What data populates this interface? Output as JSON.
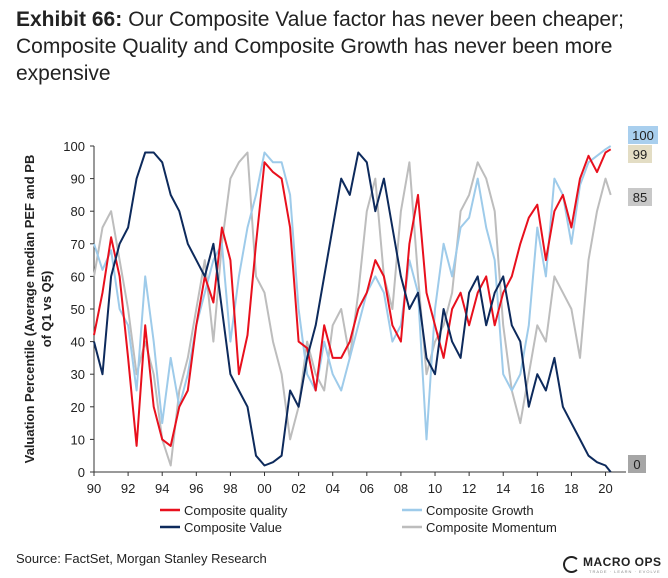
{
  "exhibit_label": "Exhibit 66:",
  "title_text": "Our Composite Value factor has never been cheaper; Composite Quality and Composite Growth has never been more expensive",
  "source": "Source: FactSet, Morgan Stanley Research",
  "logo": {
    "name": "MACRO OPS",
    "tagline": "TRADE · LEARN · EVOLVE"
  },
  "chart_data": {
    "type": "line",
    "ylabel_line1": "Valuation Percentile (Average median PEF and PB",
    "ylabel_line2": "of Q1 vs Q5)",
    "xlim": [
      1990,
      2021.2
    ],
    "ylim": [
      0,
      100
    ],
    "yticks": [
      0,
      10,
      20,
      30,
      40,
      50,
      60,
      70,
      80,
      90,
      100
    ],
    "xticks": [
      1990,
      1992,
      1994,
      1996,
      1998,
      2000,
      2002,
      2004,
      2006,
      2008,
      2010,
      2012,
      2014,
      2016,
      2018,
      2020
    ],
    "xtick_labels": [
      "90",
      "92",
      "94",
      "96",
      "98",
      "00",
      "02",
      "04",
      "06",
      "08",
      "10",
      "12",
      "14",
      "16",
      "18",
      "20"
    ],
    "series": [
      {
        "key": "quality",
        "name": "Composite quality",
        "color": "#e8101d",
        "x": [
          1990,
          1990.5,
          1991,
          1991.5,
          1992,
          1992.5,
          1993,
          1993.5,
          1994,
          1994.5,
          1995,
          1995.5,
          1996,
          1996.5,
          1997,
          1997.5,
          1998,
          1998.5,
          1999,
          1999.5,
          2000,
          2000.5,
          2001,
          2001.5,
          2002,
          2002.5,
          2003,
          2003.5,
          2004,
          2004.5,
          2005,
          2005.5,
          2006,
          2006.5,
          2007,
          2007.5,
          2008,
          2008.5,
          2009,
          2009.5,
          2010,
          2010.5,
          2011,
          2011.5,
          2012,
          2012.5,
          2013,
          2013.5,
          2014,
          2014.5,
          2015,
          2015.5,
          2016,
          2016.5,
          2017,
          2017.5,
          2018,
          2018.5,
          2019,
          2019.5,
          2020,
          2020.3
        ],
        "values": [
          42,
          55,
          72,
          60,
          35,
          8,
          45,
          20,
          10,
          8,
          20,
          25,
          45,
          60,
          52,
          75,
          65,
          30,
          42,
          70,
          95,
          92,
          90,
          75,
          40,
          38,
          25,
          45,
          35,
          35,
          40,
          50,
          55,
          65,
          60,
          45,
          40,
          70,
          85,
          55,
          45,
          35,
          50,
          55,
          45,
          55,
          60,
          45,
          55,
          60,
          70,
          78,
          82,
          65,
          80,
          85,
          75,
          90,
          97,
          92,
          98,
          99
        ],
        "last_value": 99
      },
      {
        "key": "growth",
        "name": "Composite Growth",
        "color": "#9ecbea",
        "x": [
          1990,
          1990.5,
          1991,
          1991.5,
          1992,
          1992.5,
          1993,
          1993.5,
          1994,
          1994.5,
          1995,
          1995.5,
          1996,
          1996.5,
          1997,
          1997.5,
          1998,
          1998.5,
          1999,
          1999.5,
          2000,
          2000.5,
          2001,
          2001.5,
          2002,
          2002.5,
          2003,
          2003.5,
          2004,
          2004.5,
          2005,
          2005.5,
          2006,
          2006.5,
          2007,
          2007.5,
          2008,
          2008.5,
          2009,
          2009.5,
          2010,
          2010.5,
          2011,
          2011.5,
          2012,
          2012.5,
          2013,
          2013.5,
          2014,
          2014.5,
          2015,
          2015.5,
          2016,
          2016.5,
          2017,
          2017.5,
          2018,
          2018.5,
          2019,
          2019.5,
          2020,
          2020.3
        ],
        "values": [
          70,
          62,
          68,
          50,
          45,
          25,
          60,
          40,
          15,
          35,
          20,
          30,
          45,
          55,
          65,
          70,
          40,
          60,
          75,
          85,
          98,
          95,
          95,
          85,
          50,
          30,
          25,
          40,
          30,
          25,
          35,
          45,
          55,
          60,
          55,
          40,
          45,
          65,
          55,
          10,
          50,
          70,
          60,
          75,
          78,
          90,
          75,
          65,
          30,
          25,
          30,
          45,
          75,
          60,
          90,
          85,
          70,
          88,
          95,
          97,
          99,
          100
        ],
        "last_value": 100
      },
      {
        "key": "value",
        "name": "Composite Value",
        "color": "#0d2a5c",
        "x": [
          1990,
          1990.5,
          1991,
          1991.5,
          1992,
          1992.5,
          1993,
          1993.5,
          1994,
          1994.5,
          1995,
          1995.5,
          1996,
          1996.5,
          1997,
          1997.5,
          1998,
          1998.5,
          1999,
          1999.5,
          2000,
          2000.5,
          2001,
          2001.5,
          2002,
          2002.5,
          2003,
          2003.5,
          2004,
          2004.5,
          2005,
          2005.5,
          2006,
          2006.5,
          2007,
          2007.5,
          2008,
          2008.5,
          2009,
          2009.5,
          2010,
          2010.5,
          2011,
          2011.5,
          2012,
          2012.5,
          2013,
          2013.5,
          2014,
          2014.5,
          2015,
          2015.5,
          2016,
          2016.5,
          2017,
          2017.5,
          2018,
          2018.5,
          2019,
          2019.5,
          2020,
          2020.3
        ],
        "values": [
          40,
          30,
          60,
          70,
          75,
          90,
          98,
          98,
          95,
          85,
          80,
          70,
          65,
          60,
          70,
          50,
          30,
          25,
          20,
          5,
          2,
          3,
          5,
          25,
          20,
          35,
          45,
          60,
          75,
          90,
          85,
          98,
          95,
          80,
          90,
          75,
          60,
          50,
          55,
          35,
          30,
          50,
          40,
          35,
          55,
          60,
          45,
          55,
          60,
          45,
          40,
          20,
          30,
          25,
          35,
          20,
          15,
          10,
          5,
          3,
          2,
          0
        ],
        "last_value": 0
      },
      {
        "key": "momentum",
        "name": "Composite Momentum",
        "color": "#bdbdbd",
        "x": [
          1990,
          1990.5,
          1991,
          1991.5,
          1992,
          1992.5,
          1993,
          1993.5,
          1994,
          1994.5,
          1995,
          1995.5,
          1996,
          1996.5,
          1997,
          1997.5,
          1998,
          1998.5,
          1999,
          1999.5,
          2000,
          2000.5,
          2001,
          2001.5,
          2002,
          2002.5,
          2003,
          2003.5,
          2004,
          2004.5,
          2005,
          2005.5,
          2006,
          2006.5,
          2007,
          2007.5,
          2008,
          2008.5,
          2009,
          2009.5,
          2010,
          2010.5,
          2011,
          2011.5,
          2012,
          2012.5,
          2013,
          2013.5,
          2014,
          2014.5,
          2015,
          2015.5,
          2016,
          2016.5,
          2017,
          2017.5,
          2018,
          2018.5,
          2019,
          2019.5,
          2020,
          2020.3
        ],
        "values": [
          60,
          75,
          80,
          65,
          50,
          30,
          40,
          30,
          10,
          2,
          25,
          35,
          50,
          65,
          40,
          70,
          90,
          95,
          98,
          60,
          55,
          40,
          30,
          10,
          20,
          40,
          30,
          25,
          45,
          50,
          35,
          55,
          80,
          90,
          60,
          50,
          80,
          95,
          60,
          30,
          40,
          45,
          55,
          80,
          85,
          95,
          90,
          80,
          45,
          25,
          15,
          30,
          45,
          40,
          60,
          55,
          50,
          35,
          65,
          80,
          90,
          85
        ],
        "last_value": 85
      }
    ]
  }
}
